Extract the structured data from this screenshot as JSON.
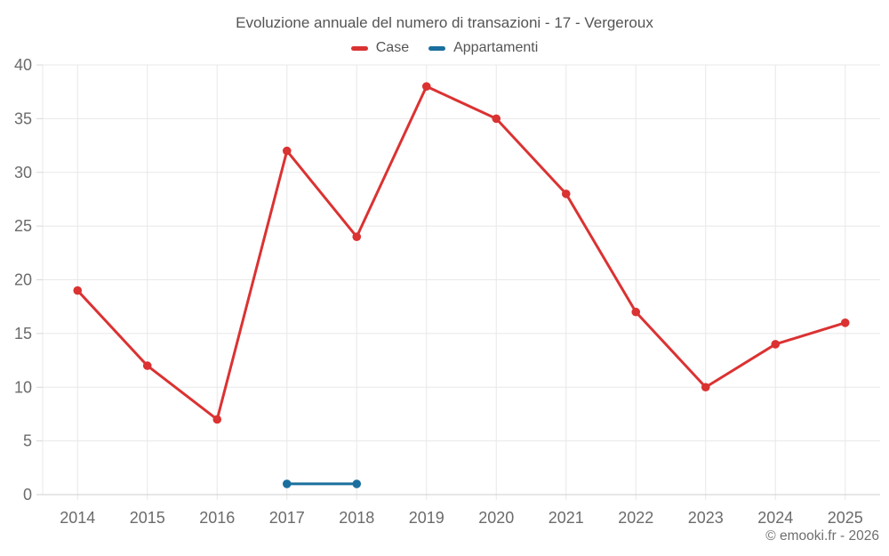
{
  "title": "Evoluzione annuale del numero di transazioni - 17 - Vergeroux",
  "legend": {
    "items": [
      {
        "label": "Case",
        "color": "#db3232"
      },
      {
        "label": "Appartamenti",
        "color": "#1a6f9e"
      }
    ]
  },
  "footer": {
    "copyright": "© emooki.fr - 2026"
  },
  "colors": {
    "case_red": "#db3232",
    "appartamenti_blue": "#1a6f9e",
    "grid": "#e8e8e8",
    "axis": "#cfcfcf",
    "tick": "#d8d8d8",
    "axis_text": "#6b6b6b"
  },
  "chart_data": {
    "type": "line",
    "title": "Evoluzione annuale del numero di transazioni - 17 - Vergeroux",
    "x": [
      "2014",
      "2015",
      "2016",
      "2017",
      "2018",
      "2019",
      "2020",
      "2021",
      "2022",
      "2023",
      "2024",
      "2025"
    ],
    "xlabel": "",
    "ylabel": "",
    "ylim": [
      0,
      40
    ],
    "yticks": [
      0,
      5,
      10,
      15,
      20,
      25,
      30,
      35,
      40
    ],
    "grid": true,
    "legend_position": "top",
    "series": [
      {
        "name": "Case",
        "color": "#db3232",
        "values": [
          19,
          12,
          7,
          32,
          24,
          38,
          35,
          28,
          17,
          10,
          14,
          16
        ]
      },
      {
        "name": "Appartamenti",
        "color": "#1a6f9e",
        "values": [
          null,
          null,
          null,
          1,
          1,
          null,
          null,
          null,
          null,
          null,
          null,
          null
        ]
      }
    ]
  }
}
